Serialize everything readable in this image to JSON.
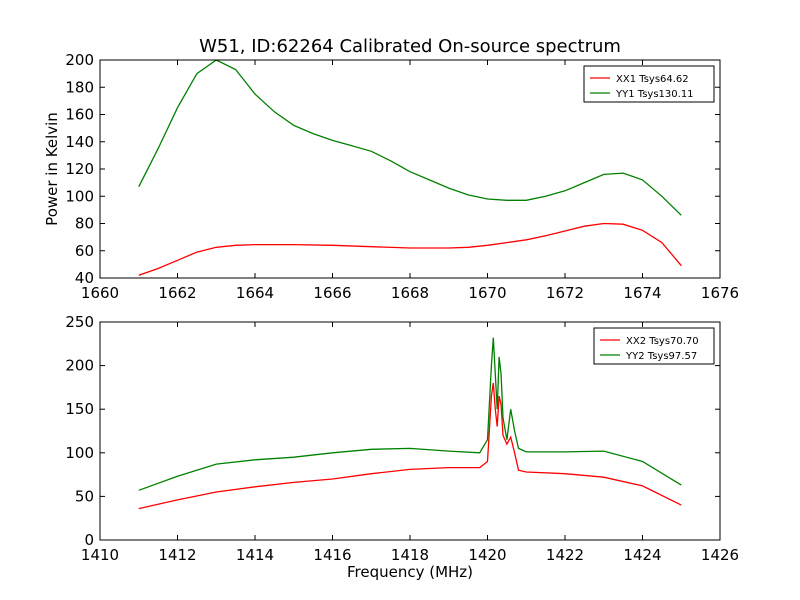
{
  "title": "W51, ID:62264 Calibrated On-source spectrum",
  "colors": {
    "xx": "#ff0000",
    "yy": "#008000"
  },
  "chart_data": [
    {
      "type": "line",
      "title": "W51, ID:62264 Calibrated On-source spectrum",
      "xlabel": "",
      "ylabel": "Power in Kelvin",
      "xlim": [
        1660,
        1676
      ],
      "ylim": [
        40,
        200
      ],
      "xticks": [
        1660,
        1662,
        1664,
        1666,
        1668,
        1670,
        1672,
        1674,
        1676
      ],
      "yticks": [
        40,
        60,
        80,
        100,
        120,
        140,
        160,
        180,
        200
      ],
      "legend": "top-right",
      "grid": false,
      "series": [
        {
          "name": "XX1 Tsys64.62",
          "color": "#ff0000",
          "points": [
            [
              1661.0,
              42
            ],
            [
              1661.5,
              47
            ],
            [
              1662.0,
              53
            ],
            [
              1662.5,
              59
            ],
            [
              1663.0,
              62.5
            ],
            [
              1663.5,
              64
            ],
            [
              1664.0,
              64.5
            ],
            [
              1665.0,
              64.5
            ],
            [
              1666.0,
              64
            ],
            [
              1667.0,
              63
            ],
            [
              1668.0,
              62
            ],
            [
              1669.0,
              62
            ],
            [
              1669.5,
              62.5
            ],
            [
              1670.0,
              64
            ],
            [
              1670.5,
              66
            ],
            [
              1671.0,
              68
            ],
            [
              1671.5,
              71
            ],
            [
              1672.0,
              74.5
            ],
            [
              1672.5,
              78
            ],
            [
              1673.0,
              80
            ],
            [
              1673.5,
              79.5
            ],
            [
              1674.0,
              75
            ],
            [
              1674.5,
              66
            ],
            [
              1675.0,
              49
            ]
          ]
        },
        {
          "name": "YY1 Tsys130.11",
          "color": "#008000",
          "points": [
            [
              1661.0,
              107
            ],
            [
              1661.5,
              135
            ],
            [
              1662.0,
              165
            ],
            [
              1662.5,
              190
            ],
            [
              1663.0,
              200
            ],
            [
              1663.5,
              193
            ],
            [
              1664.0,
              175
            ],
            [
              1664.5,
              162
            ],
            [
              1665.0,
              152
            ],
            [
              1665.5,
              146
            ],
            [
              1666.0,
              141
            ],
            [
              1666.5,
              137
            ],
            [
              1667.0,
              133
            ],
            [
              1667.5,
              126
            ],
            [
              1668.0,
              118
            ],
            [
              1668.5,
              112
            ],
            [
              1669.0,
              106
            ],
            [
              1669.5,
              101
            ],
            [
              1670.0,
              98
            ],
            [
              1670.5,
              97
            ],
            [
              1671.0,
              97
            ],
            [
              1671.5,
              100
            ],
            [
              1672.0,
              104
            ],
            [
              1672.5,
              110
            ],
            [
              1673.0,
              116
            ],
            [
              1673.5,
              117
            ],
            [
              1674.0,
              112
            ],
            [
              1674.5,
              100
            ],
            [
              1675.0,
              86
            ]
          ]
        }
      ]
    },
    {
      "type": "line",
      "title": "",
      "xlabel": "Frequency (MHz)",
      "ylabel": "",
      "xlim": [
        1410,
        1426
      ],
      "ylim": [
        0,
        250
      ],
      "xticks": [
        1410,
        1412,
        1414,
        1416,
        1418,
        1420,
        1422,
        1424,
        1426
      ],
      "yticks": [
        0,
        50,
        100,
        150,
        200,
        250
      ],
      "legend": "top-right",
      "grid": false,
      "series": [
        {
          "name": "XX2 Tsys70.70",
          "color": "#ff0000",
          "points": [
            [
              1411.0,
              36
            ],
            [
              1412.0,
              46
            ],
            [
              1413.0,
              55
            ],
            [
              1414.0,
              61
            ],
            [
              1415.0,
              66
            ],
            [
              1416.0,
              70
            ],
            [
              1417.0,
              76
            ],
            [
              1418.0,
              81
            ],
            [
              1419.0,
              83
            ],
            [
              1419.8,
              83
            ],
            [
              1420.0,
              90
            ],
            [
              1420.1,
              165
            ],
            [
              1420.15,
              180
            ],
            [
              1420.2,
              150
            ],
            [
              1420.25,
              130
            ],
            [
              1420.3,
              165
            ],
            [
              1420.35,
              155
            ],
            [
              1420.4,
              120
            ],
            [
              1420.5,
              110
            ],
            [
              1420.6,
              118
            ],
            [
              1420.7,
              100
            ],
            [
              1420.8,
              80
            ],
            [
              1421.0,
              78
            ],
            [
              1422.0,
              76
            ],
            [
              1423.0,
              72
            ],
            [
              1424.0,
              62
            ],
            [
              1425.0,
              40
            ]
          ]
        },
        {
          "name": "YY2 Tsys97.57",
          "color": "#008000",
          "points": [
            [
              1411.0,
              57
            ],
            [
              1412.0,
              73
            ],
            [
              1413.0,
              87
            ],
            [
              1414.0,
              92
            ],
            [
              1415.0,
              95
            ],
            [
              1416.0,
              100
            ],
            [
              1417.0,
              104
            ],
            [
              1418.0,
              105
            ],
            [
              1419.0,
              102
            ],
            [
              1419.8,
              100
            ],
            [
              1420.0,
              115
            ],
            [
              1420.1,
              200
            ],
            [
              1420.15,
              232
            ],
            [
              1420.2,
              190
            ],
            [
              1420.25,
              150
            ],
            [
              1420.3,
              210
            ],
            [
              1420.35,
              190
            ],
            [
              1420.4,
              140
            ],
            [
              1420.5,
              115
            ],
            [
              1420.6,
              150
            ],
            [
              1420.7,
              125
            ],
            [
              1420.8,
              105
            ],
            [
              1421.0,
              101
            ],
            [
              1422.0,
              101
            ],
            [
              1423.0,
              102
            ],
            [
              1424.0,
              90
            ],
            [
              1425.0,
              63
            ]
          ]
        }
      ]
    }
  ]
}
